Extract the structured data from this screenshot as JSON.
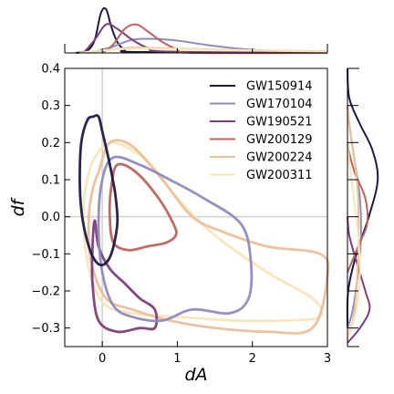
{
  "chart_data": {
    "type": "contour",
    "title": "",
    "xlabel": "dA",
    "ylabel": "df",
    "xlim": [
      -0.5,
      3
    ],
    "ylim": [
      -0.35,
      0.4
    ],
    "xticks": [
      {
        "v": 0,
        "label": "0"
      },
      {
        "v": 1,
        "label": "1"
      },
      {
        "v": 2,
        "label": "2"
      },
      {
        "v": 3,
        "label": "3"
      }
    ],
    "yticks": [
      {
        "v": -0.3,
        "label": "−0.3"
      },
      {
        "v": -0.2,
        "label": "−0.2"
      },
      {
        "v": -0.1,
        "label": "−0.1"
      },
      {
        "v": 0.0,
        "label": "0.0"
      },
      {
        "v": 0.1,
        "label": "0.1"
      },
      {
        "v": 0.2,
        "label": "0.2"
      },
      {
        "v": 0.3,
        "label": "0.3"
      },
      {
        "v": 0.4,
        "label": "0.4"
      }
    ],
    "reference_lines": {
      "x": 0,
      "y": 0
    },
    "legend_position": "upper-right",
    "series": [
      {
        "name": "GW150914",
        "color": "#1e1a45",
        "contour": [
          [
            -0.12,
            0.27
          ],
          [
            -0.2,
            0.26
          ],
          [
            -0.28,
            0.2
          ],
          [
            -0.3,
            0.1
          ],
          [
            -0.28,
            0.02
          ],
          [
            -0.22,
            -0.05
          ],
          [
            -0.12,
            -0.11
          ],
          [
            0.0,
            -0.13
          ],
          [
            0.12,
            -0.1
          ],
          [
            0.2,
            -0.02
          ],
          [
            0.18,
            0.05
          ],
          [
            0.14,
            0.1
          ],
          [
            0.08,
            0.16
          ],
          [
            0.0,
            0.23
          ],
          [
            -0.05,
            0.27
          ]
        ],
        "marginal_x": [
          [
            -0.35,
            0
          ],
          [
            -0.2,
            0.05
          ],
          [
            -0.1,
            0.3
          ],
          [
            -0.02,
            0.9
          ],
          [
            0.05,
            1.0
          ],
          [
            0.12,
            0.6
          ],
          [
            0.2,
            0.25
          ],
          [
            0.3,
            0.08
          ],
          [
            0.5,
            0.02
          ],
          [
            3,
            0
          ]
        ],
        "marginal_y": [
          [
            -0.3,
            0
          ],
          [
            -0.2,
            0.02
          ],
          [
            -0.1,
            0.25
          ],
          [
            0.0,
            0.6
          ],
          [
            0.1,
            0.85
          ],
          [
            0.18,
            0.7
          ],
          [
            0.25,
            0.35
          ],
          [
            0.32,
            0.05
          ],
          [
            0.4,
            0
          ]
        ]
      },
      {
        "name": "GW170104",
        "color": "#8f8bbb",
        "contour": [
          [
            0.15,
            0.16
          ],
          [
            0.5,
            0.14
          ],
          [
            0.9,
            0.1
          ],
          [
            1.35,
            0.05
          ],
          [
            1.85,
            -0.02
          ],
          [
            1.98,
            -0.12
          ],
          [
            1.95,
            -0.22
          ],
          [
            1.7,
            -0.26
          ],
          [
            1.2,
            -0.25
          ],
          [
            0.8,
            -0.28
          ],
          [
            0.4,
            -0.27
          ],
          [
            0.15,
            -0.24
          ],
          [
            0.0,
            -0.15
          ],
          [
            -0.05,
            -0.02
          ],
          [
            0.0,
            0.1
          ]
        ],
        "marginal_x": [
          [
            -0.2,
            0
          ],
          [
            0.1,
            0.12
          ],
          [
            0.4,
            0.3
          ],
          [
            0.7,
            0.32
          ],
          [
            1.0,
            0.28
          ],
          [
            1.4,
            0.18
          ],
          [
            1.8,
            0.1
          ],
          [
            2.2,
            0.05
          ],
          [
            3,
            0
          ]
        ],
        "marginal_y": [
          [
            -0.3,
            0
          ],
          [
            -0.25,
            0.15
          ],
          [
            -0.15,
            0.3
          ],
          [
            -0.05,
            0.38
          ],
          [
            0.05,
            0.35
          ],
          [
            0.15,
            0.2
          ],
          [
            0.25,
            0.05
          ],
          [
            0.3,
            0
          ]
        ]
      },
      {
        "name": "GW190521",
        "color": "#7c3f7c",
        "contour": [
          [
            -0.1,
            -0.01
          ],
          [
            -0.05,
            -0.08
          ],
          [
            0.1,
            -0.14
          ],
          [
            0.3,
            -0.18
          ],
          [
            0.5,
            -0.22
          ],
          [
            0.7,
            -0.25
          ],
          [
            0.7,
            -0.3
          ],
          [
            0.5,
            -0.3
          ],
          [
            0.2,
            -0.31
          ],
          [
            -0.05,
            -0.28
          ],
          [
            -0.13,
            -0.18
          ],
          [
            -0.13,
            -0.08
          ]
        ],
        "marginal_x": [
          [
            -0.25,
            0
          ],
          [
            -0.1,
            0.3
          ],
          [
            0.05,
            0.65
          ],
          [
            0.2,
            0.55
          ],
          [
            0.4,
            0.3
          ],
          [
            0.6,
            0.12
          ],
          [
            0.9,
            0.03
          ],
          [
            3,
            0
          ]
        ],
        "marginal_y": [
          [
            -0.34,
            0
          ],
          [
            -0.3,
            0.35
          ],
          [
            -0.25,
            0.62
          ],
          [
            -0.2,
            0.5
          ],
          [
            -0.12,
            0.25
          ],
          [
            -0.05,
            0.05
          ],
          [
            0.0,
            0
          ]
        ]
      },
      {
        "name": "GW200129",
        "color": "#b9655c",
        "contour": [
          [
            0.2,
            0.14
          ],
          [
            0.45,
            0.12
          ],
          [
            0.75,
            0.05
          ],
          [
            0.95,
            -0.02
          ],
          [
            0.98,
            -0.05
          ],
          [
            0.85,
            -0.07
          ],
          [
            0.6,
            -0.08
          ],
          [
            0.35,
            -0.09
          ],
          [
            0.15,
            -0.07
          ],
          [
            0.1,
            0.0
          ],
          [
            0.12,
            0.08
          ]
        ],
        "marginal_x": [
          [
            0,
            0
          ],
          [
            0.15,
            0.2
          ],
          [
            0.3,
            0.55
          ],
          [
            0.45,
            0.65
          ],
          [
            0.6,
            0.5
          ],
          [
            0.8,
            0.25
          ],
          [
            1.0,
            0.08
          ],
          [
            1.2,
            0
          ],
          [
            3,
            0
          ]
        ],
        "marginal_y": [
          [
            -0.15,
            0
          ],
          [
            -0.08,
            0.3
          ],
          [
            -0.02,
            0.55
          ],
          [
            0.05,
            0.5
          ],
          [
            0.12,
            0.2
          ],
          [
            0.18,
            0.03
          ],
          [
            0.2,
            0
          ]
        ]
      },
      {
        "name": "GW200224",
        "color": "#ecc09a",
        "contour": [
          [
            -0.05,
            0.12
          ],
          [
            0.1,
            0.2
          ],
          [
            0.4,
            0.19
          ],
          [
            0.8,
            0.1
          ],
          [
            1.2,
            0.0
          ],
          [
            1.6,
            -0.04
          ],
          [
            2.2,
            -0.08
          ],
          [
            2.9,
            -0.1
          ],
          [
            3.0,
            -0.16
          ],
          [
            2.8,
            -0.3
          ],
          [
            2.2,
            -0.31
          ],
          [
            1.5,
            -0.3
          ],
          [
            0.9,
            -0.28
          ],
          [
            0.4,
            -0.25
          ],
          [
            0.05,
            -0.22
          ],
          [
            -0.15,
            -0.12
          ],
          [
            -0.18,
            0.0
          ],
          [
            -0.12,
            0.08
          ]
        ],
        "marginal_x": [
          [
            -0.3,
            0
          ],
          [
            0,
            0.05
          ],
          [
            0.4,
            0.12
          ],
          [
            1.0,
            0.1
          ],
          [
            2.0,
            0.06
          ],
          [
            3,
            0.04
          ]
        ],
        "marginal_y": [
          [
            -0.33,
            0
          ],
          [
            -0.25,
            0.2
          ],
          [
            -0.1,
            0.3
          ],
          [
            0.05,
            0.3
          ],
          [
            0.15,
            0.2
          ],
          [
            0.25,
            0.05
          ],
          [
            0.3,
            0
          ]
        ]
      },
      {
        "name": "GW200311",
        "color": "#f6e6ba",
        "contour": [
          [
            -0.22,
            0.08
          ],
          [
            -0.1,
            0.16
          ],
          [
            0.15,
            0.2
          ],
          [
            0.6,
            0.15
          ],
          [
            1.0,
            0.05
          ],
          [
            1.5,
            -0.05
          ],
          [
            2.2,
            -0.15
          ],
          [
            2.8,
            -0.22
          ],
          [
            2.9,
            -0.27
          ],
          [
            2.4,
            -0.28
          ],
          [
            1.8,
            -0.28
          ],
          [
            1.0,
            -0.27
          ],
          [
            0.4,
            -0.26
          ],
          [
            0.0,
            -0.23
          ],
          [
            -0.2,
            -0.12
          ],
          [
            -0.25,
            0.0
          ]
        ],
        "marginal_x": [
          [
            -0.3,
            0
          ],
          [
            0,
            0.06
          ],
          [
            0.5,
            0.1
          ],
          [
            1.2,
            0.08
          ],
          [
            2.2,
            0.05
          ],
          [
            3,
            0.03
          ]
        ],
        "marginal_y": [
          [
            -0.33,
            0
          ],
          [
            -0.25,
            0.25
          ],
          [
            -0.15,
            0.35
          ],
          [
            -0.05,
            0.3
          ],
          [
            0.05,
            0.18
          ],
          [
            0.15,
            0.05
          ],
          [
            0.2,
            0
          ]
        ]
      }
    ]
  }
}
